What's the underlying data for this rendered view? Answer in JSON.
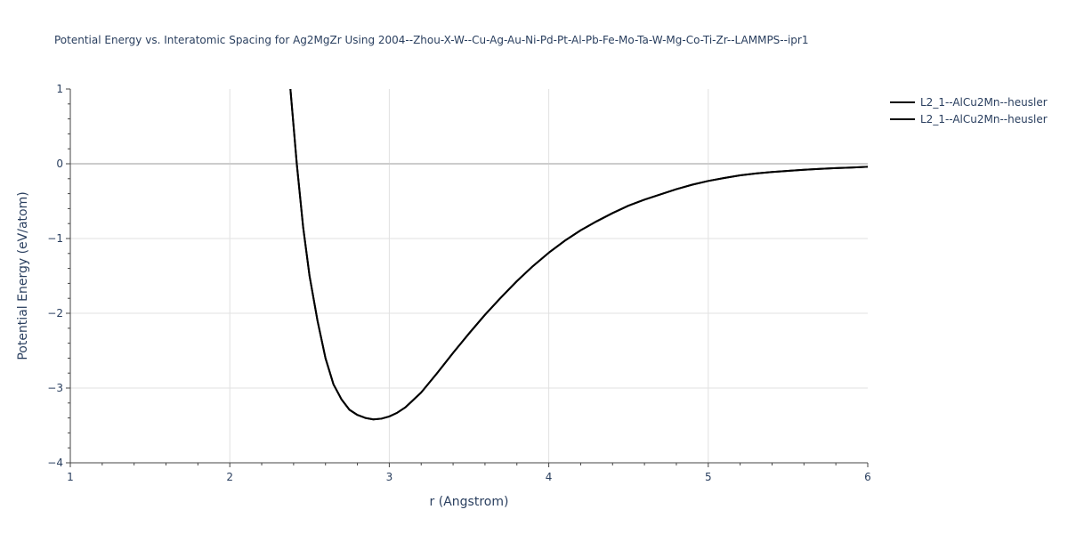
{
  "chart_data": {
    "type": "line",
    "title": "Potential Energy vs. Interatomic Spacing for Ag2MgZr Using 2004--Zhou-X-W--Cu-Ag-Au-Ni-Pd-Pt-Al-Pb-Fe-Mo-Ta-W-Mg-Co-Ti-Zr--LAMMPS--ipr1",
    "xlabel": "r (Angstrom)",
    "ylabel": "Potential Energy (eV/atom)",
    "xlim": [
      1,
      6
    ],
    "ylim": [
      -4,
      1
    ],
    "xticks": [
      1,
      2,
      3,
      4,
      5,
      6
    ],
    "yticks": [
      1,
      0,
      -1,
      -2,
      -3,
      -4
    ],
    "xtick_labels": [
      "1",
      "2",
      "3",
      "4",
      "5",
      "6"
    ],
    "ytick_labels": [
      "1",
      "0",
      "−1",
      "−2",
      "−3",
      "−4"
    ],
    "grid": true,
    "legend_position": "top-right",
    "line_color": "#000000",
    "series": [
      {
        "name": "L2_1--AlCu2Mn--heusler",
        "x": [
          2.38,
          2.42,
          2.46,
          2.5,
          2.55,
          2.6,
          2.65,
          2.7,
          2.75,
          2.8,
          2.85,
          2.9,
          2.95,
          3.0,
          3.05,
          3.1,
          3.2,
          3.3,
          3.4,
          3.5,
          3.6,
          3.7,
          3.8,
          3.9,
          4.0,
          4.1,
          4.2,
          4.3,
          4.4,
          4.5,
          4.6,
          4.7,
          4.8,
          4.9,
          5.0,
          5.1,
          5.2,
          5.3,
          5.4,
          5.5,
          5.6,
          5.7,
          5.8,
          5.9,
          6.0
        ],
        "y": [
          1.0,
          0.0,
          -0.85,
          -1.5,
          -2.1,
          -2.6,
          -2.95,
          -3.15,
          -3.29,
          -3.36,
          -3.4,
          -3.42,
          -3.41,
          -3.38,
          -3.33,
          -3.26,
          -3.06,
          -2.8,
          -2.53,
          -2.27,
          -2.02,
          -1.79,
          -1.57,
          -1.37,
          -1.19,
          -1.03,
          -0.89,
          -0.77,
          -0.66,
          -0.56,
          -0.48,
          -0.41,
          -0.34,
          -0.28,
          -0.23,
          -0.19,
          -0.155,
          -0.13,
          -0.11,
          -0.095,
          -0.08,
          -0.068,
          -0.058,
          -0.05,
          -0.04
        ]
      },
      {
        "name": "L2_1--AlCu2Mn--heusler",
        "x": [
          2.38,
          2.42,
          2.46,
          2.5,
          2.55,
          2.6,
          2.65,
          2.7,
          2.75,
          2.8,
          2.85,
          2.9,
          2.95,
          3.0,
          3.05,
          3.1,
          3.2,
          3.3,
          3.4,
          3.5,
          3.6,
          3.7,
          3.8,
          3.9,
          4.0,
          4.1,
          4.2,
          4.3,
          4.4,
          4.5,
          4.6,
          4.7,
          4.8,
          4.9,
          5.0,
          5.1,
          5.2,
          5.3,
          5.4,
          5.5,
          5.6,
          5.7,
          5.8,
          5.9,
          6.0
        ],
        "y": [
          1.0,
          0.0,
          -0.85,
          -1.5,
          -2.1,
          -2.6,
          -2.95,
          -3.15,
          -3.29,
          -3.36,
          -3.4,
          -3.42,
          -3.41,
          -3.38,
          -3.33,
          -3.26,
          -3.06,
          -2.8,
          -2.53,
          -2.27,
          -2.02,
          -1.79,
          -1.57,
          -1.37,
          -1.19,
          -1.03,
          -0.89,
          -0.77,
          -0.66,
          -0.56,
          -0.48,
          -0.41,
          -0.34,
          -0.28,
          -0.23,
          -0.19,
          -0.155,
          -0.13,
          -0.11,
          -0.095,
          -0.08,
          -0.068,
          -0.058,
          -0.05,
          -0.04
        ]
      }
    ]
  }
}
